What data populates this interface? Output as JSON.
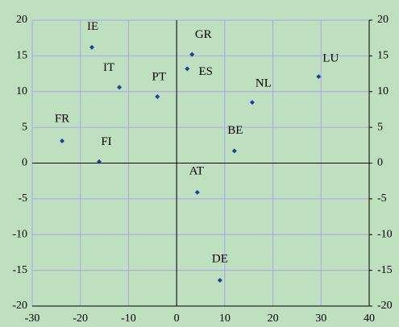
{
  "chart_data": {
    "type": "scatter",
    "labels": [
      "IE",
      "IT",
      "PT",
      "GR",
      "ES",
      "LU",
      "NL",
      "FR",
      "FI",
      "BE",
      "AT",
      "DE"
    ],
    "x": [
      -17.6,
      -11.9,
      -4.0,
      3.2,
      2.2,
      29.5,
      15.7,
      -23.8,
      -16.1,
      12.0,
      4.3,
      9.0
    ],
    "values": [
      16.2,
      10.6,
      9.3,
      15.2,
      13.2,
      12.1,
      8.5,
      3.1,
      0.2,
      1.7,
      -4.1,
      -16.4
    ],
    "color": "#1f3f9f",
    "xlim": [
      -30,
      40
    ],
    "xticks": [
      -30,
      -20,
      -10,
      0,
      10,
      20,
      30,
      40
    ],
    "ylim": [
      -20,
      20
    ],
    "yticks": [
      -20,
      -15,
      -10,
      -5,
      0,
      5,
      10,
      15,
      20
    ],
    "y2lim": [
      -20,
      20
    ],
    "y2ticks": [
      -20,
      -15,
      -10,
      -5,
      0,
      5,
      10,
      15,
      20
    ],
    "grid": true
  }
}
